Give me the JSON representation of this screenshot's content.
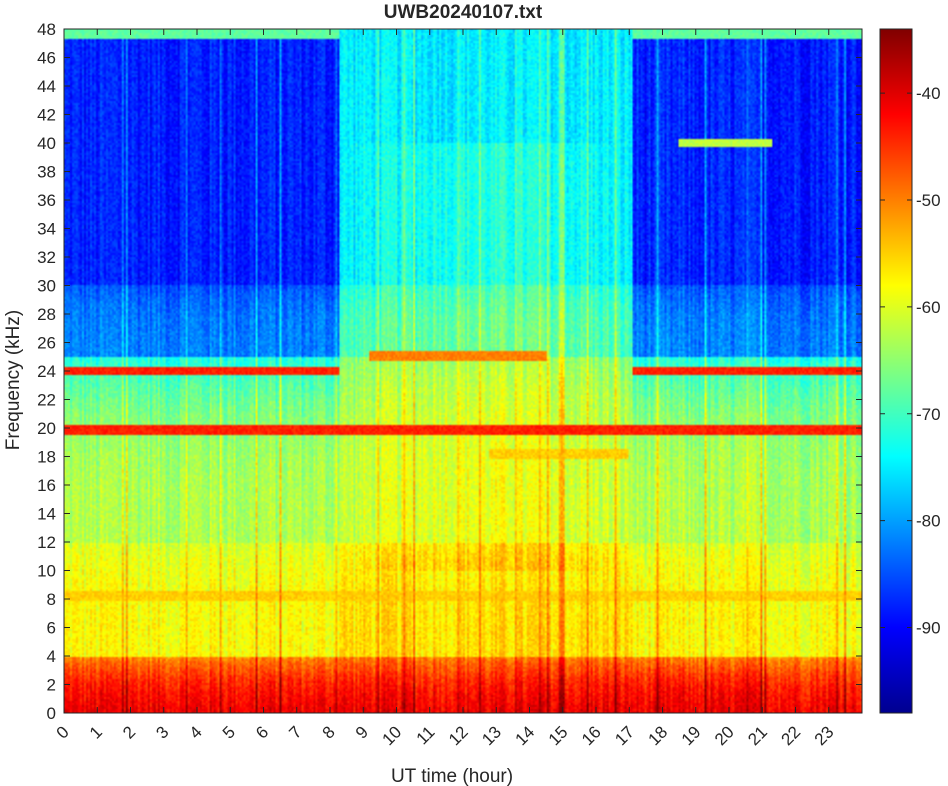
{
  "chart_data": {
    "type": "heatmap",
    "title": "UWB20240107.txt",
    "xlabel": "UT time (hour)",
    "ylabel": "Frequency (kHz)",
    "xlim": [
      0,
      24
    ],
    "ylim": [
      0,
      48
    ],
    "x_ticks": [
      0,
      1,
      2,
      3,
      4,
      5,
      6,
      7,
      8,
      9,
      10,
      11,
      12,
      13,
      14,
      15,
      16,
      17,
      18,
      19,
      20,
      21,
      22,
      23
    ],
    "y_ticks": [
      0,
      2,
      4,
      6,
      8,
      10,
      12,
      14,
      16,
      18,
      20,
      22,
      24,
      26,
      28,
      30,
      32,
      34,
      36,
      38,
      40,
      42,
      44,
      46,
      48
    ],
    "colorbar": {
      "colormap": "jet",
      "range": [
        -98,
        -34
      ],
      "ticks": [
        -40,
        -50,
        -60,
        -70,
        -80,
        -90
      ]
    },
    "background_levels_db": [
      {
        "freq_khz": [
          0,
          4
        ],
        "night": -44,
        "day": -44
      },
      {
        "freq_khz": [
          4,
          12
        ],
        "night": -58,
        "day": -56
      },
      {
        "freq_khz": [
          12,
          25
        ],
        "night": -63,
        "day": -62
      },
      {
        "freq_khz": [
          25,
          30
        ],
        "night": -82,
        "day": -70
      },
      {
        "freq_khz": [
          30,
          48
        ],
        "night": -88,
        "day": -75
      }
    ],
    "day_period_hours": [
      8.3,
      17.1
    ],
    "narrowband_lines": [
      {
        "name": "24 kHz transmitter",
        "freq_khz": 24,
        "hours": [
          [
            0,
            8.3
          ],
          [
            17.1,
            24
          ]
        ],
        "level_db": -44
      },
      {
        "name": "19.8 kHz transmitter",
        "freq_khz": 19.8,
        "hours": [
          [
            0,
            24
          ]
        ],
        "level_db": -44
      },
      {
        "name": "25 kHz line",
        "freq_khz": 25,
        "hours": [
          [
            9.2,
            14.5
          ]
        ],
        "level_db": -50
      },
      {
        "name": "18.2 kHz line",
        "freq_khz": 18.2,
        "hours": [
          [
            12.8,
            17
          ]
        ],
        "level_db": -55
      },
      {
        "name": "40 kHz signal",
        "freq_khz": 40,
        "hours": [
          [
            18.5,
            21.3
          ]
        ],
        "level_db": -62
      },
      {
        "name": "8.2 kHz line",
        "freq_khz": 8.2,
        "hours": [
          [
            0,
            24
          ]
        ],
        "level_db": -55
      },
      {
        "name": "47.6 kHz top band",
        "freq_khz": 47.6,
        "hours": [
          [
            0,
            8.3
          ],
          [
            17.1,
            24
          ]
        ],
        "level_db": -68
      }
    ]
  }
}
